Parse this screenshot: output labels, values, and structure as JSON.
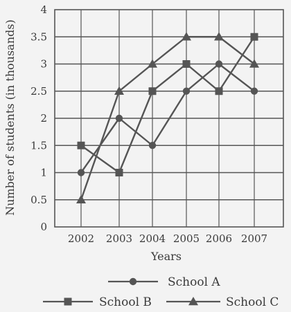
{
  "chart_data": {
    "type": "line",
    "x": [
      "2002",
      "2003",
      "2004",
      "2005",
      "2006",
      "2007"
    ],
    "xlabel": "Years",
    "ylabel": "Number of students (in thousands)",
    "ylim": [
      0,
      4
    ],
    "yticks": [
      "0",
      "0.5",
      "1",
      "1.5",
      "2",
      "2.5",
      "3",
      "3.5",
      "4"
    ],
    "grid": true,
    "legend_position": "bottom",
    "series": [
      {
        "name": "School A",
        "marker": "circle",
        "values": [
          1,
          2,
          1.5,
          2.5,
          3,
          2.5
        ]
      },
      {
        "name": "School B",
        "marker": "square",
        "values": [
          1.5,
          1,
          2.5,
          3,
          2.5,
          3.5
        ]
      },
      {
        "name": "School C",
        "marker": "triangle",
        "values": [
          0.5,
          2.5,
          3,
          3.5,
          3.5,
          3
        ]
      }
    ],
    "colors": {
      "line": "#555555",
      "grid": "#555555",
      "text": "#3a3a3a",
      "background": "#f3f3f3"
    }
  }
}
